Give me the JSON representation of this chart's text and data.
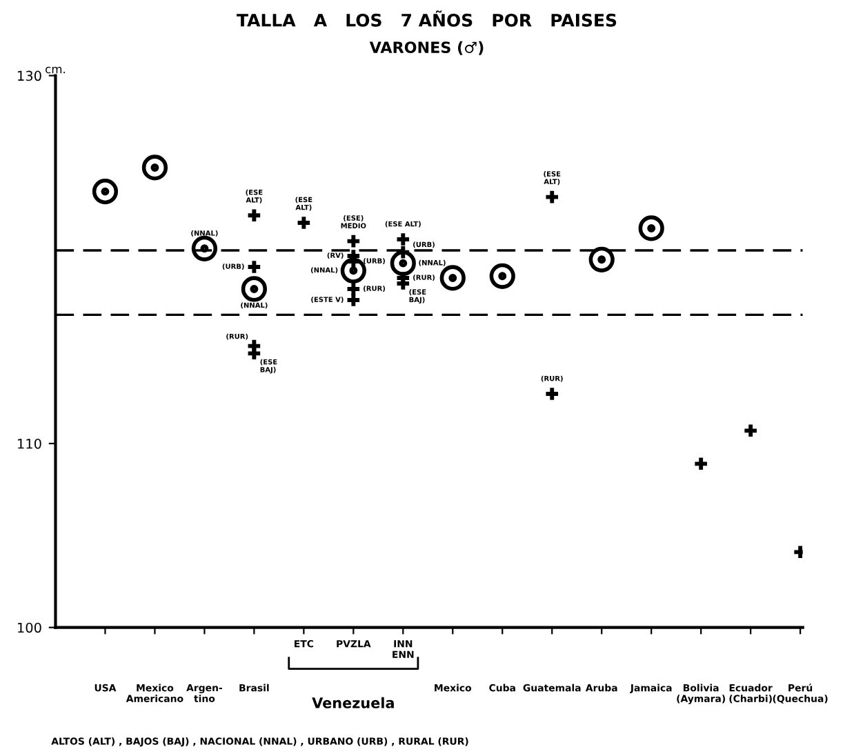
{
  "chart_data": {
    "type": "scatter",
    "title": "TALLA   A   LOS   7 AÑOS   POR   PAISES",
    "subtitle": "VARONES (♂)",
    "ylabel": "cm.",
    "categories": [
      "USA",
      "Mexico\nAmericano",
      "Argen-\ntino",
      "Brasil",
      "ETC",
      "PVZLA",
      "INN\nENN",
      "Mexico",
      "Cuba",
      "Guatemala",
      "Aruba",
      "Jamaica",
      "Bolivia\n(Aymara)",
      "Ecuador\n(Charbi)",
      "Perú\n(Quechua)"
    ],
    "ylim": [
      100,
      130
    ],
    "yticks": [
      100,
      110,
      130
    ],
    "grid": false,
    "legend": false,
    "series": [
      {
        "color": "#000000",
        "marker": "circle",
        "values": [
          123.7,
          125.0,
          120.6,
          118.4,
          null,
          119.4,
          119.8,
          119.0,
          119.1,
          null,
          120.0,
          121.7,
          null,
          null,
          null
        ]
      },
      {
        "color": "#000000",
        "marker": "cross",
        "values": [
          null,
          null,
          null,
          122.4,
          122.0,
          121.0,
          121.1,
          null,
          null,
          123.4,
          null,
          null,
          108.9,
          110.7,
          104.1
        ]
      },
      {
        "color": "#000000",
        "marker": "cross",
        "values": [
          null,
          null,
          null,
          119.6,
          null,
          119.9,
          120.4,
          null,
          null,
          null,
          null,
          null,
          null,
          null,
          null
        ]
      },
      {
        "color": "#000000",
        "marker": "cross",
        "values": [
          null,
          null,
          null,
          115.3,
          null,
          118.4,
          119.0,
          null,
          null,
          112.7,
          null,
          null,
          null,
          null,
          null
        ]
      },
      {
        "color": "#000000",
        "marker": "cross",
        "values": [
          null,
          null,
          null,
          114.9,
          null,
          117.8,
          118.7,
          null,
          null,
          null,
          null,
          null,
          null,
          null,
          null
        ]
      },
      {
        "color": "#000000",
        "marker": "cross",
        "values": [
          null,
          null,
          null,
          null,
          null,
          120.2,
          null,
          null,
          null,
          null,
          null,
          null,
          null,
          null,
          null
        ]
      }
    ],
    "ref_lines": [
      {
        "axis": "y",
        "value": 120.5,
        "line_style": "dashed"
      },
      {
        "axis": "y",
        "value": 117.0,
        "line_style": "dashed"
      }
    ],
    "annotations": [
      {
        "text": "(NNAL)",
        "x": "Argen-\ntino",
        "y": 120.6
      },
      {
        "text": "(ESE\nALT)",
        "x": "Brasil",
        "y": 122.4
      },
      {
        "text": "(URB)",
        "x": "Brasil",
        "y": 119.6
      },
      {
        "text": "(NNAL)",
        "x": "Brasil",
        "y": 118.4
      },
      {
        "text": "(RUR)",
        "x": "Brasil",
        "y": 115.3
      },
      {
        "text": "(ESE\nBAJ)",
        "x": "Brasil",
        "y": 114.9
      },
      {
        "text": "(ESE\nALT)",
        "x": "ETC",
        "y": 122.0
      },
      {
        "text": "(ESE)\nMEDIO",
        "x": "PVZLA",
        "y": 121.0
      },
      {
        "text": "(RV)",
        "x": "PVZLA",
        "y": 120.2
      },
      {
        "text": "(URB)",
        "x": "PVZLA",
        "y": 119.9
      },
      {
        "text": "(NNAL)",
        "x": "PVZLA",
        "y": 119.4
      },
      {
        "text": "(RUR)",
        "x": "PVZLA",
        "y": 118.4
      },
      {
        "text": "(ESTE V)",
        "x": "PVZLA",
        "y": 117.8
      },
      {
        "text": "(ESE ALT)",
        "x": "INN\nENN",
        "y": 121.1
      },
      {
        "text": "(URB)",
        "x": "INN\nENN",
        "y": 120.4
      },
      {
        "text": "(NNAL)",
        "x": "INN\nENN",
        "y": 119.8
      },
      {
        "text": "(RUR)",
        "x": "INN\nENN",
        "y": 119.0
      },
      {
        "text": "(ESE\nBAJ)",
        "x": "INN\nENN",
        "y": 118.7
      },
      {
        "text": "(ESE\nALT)",
        "x": "Guatemala",
        "y": 123.4
      },
      {
        "text": "(RUR)",
        "x": "Guatemala",
        "y": 112.7
      },
      "Venezuela",
      "ALTOS (ALT) , BAJOS (BAJ) , NACIONAL (NNAL) , URBANO (URB) , RURAL (RUR)"
    ]
  }
}
